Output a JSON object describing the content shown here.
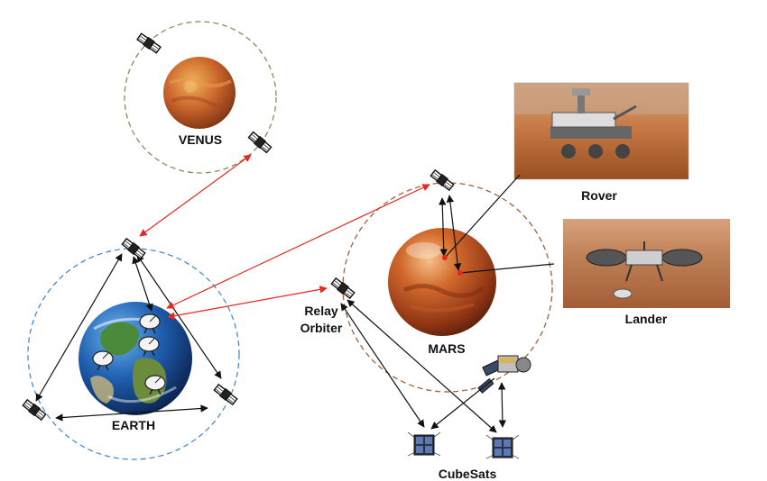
{
  "labels": {
    "venus": "VENUS",
    "earth": "EARTH",
    "mars": "MARS",
    "relay_line1": "Relay",
    "relay_line2": "Orbiter",
    "rover": "Rover",
    "lander": "Lander",
    "cubesats": "CubeSats"
  },
  "colors": {
    "link_red": "#e8261f",
    "link_black": "#111111",
    "venus_orbit": "#8a8a5a",
    "earth_orbit": "#4a8bd0",
    "mars_orbit": "#a0603a"
  }
}
